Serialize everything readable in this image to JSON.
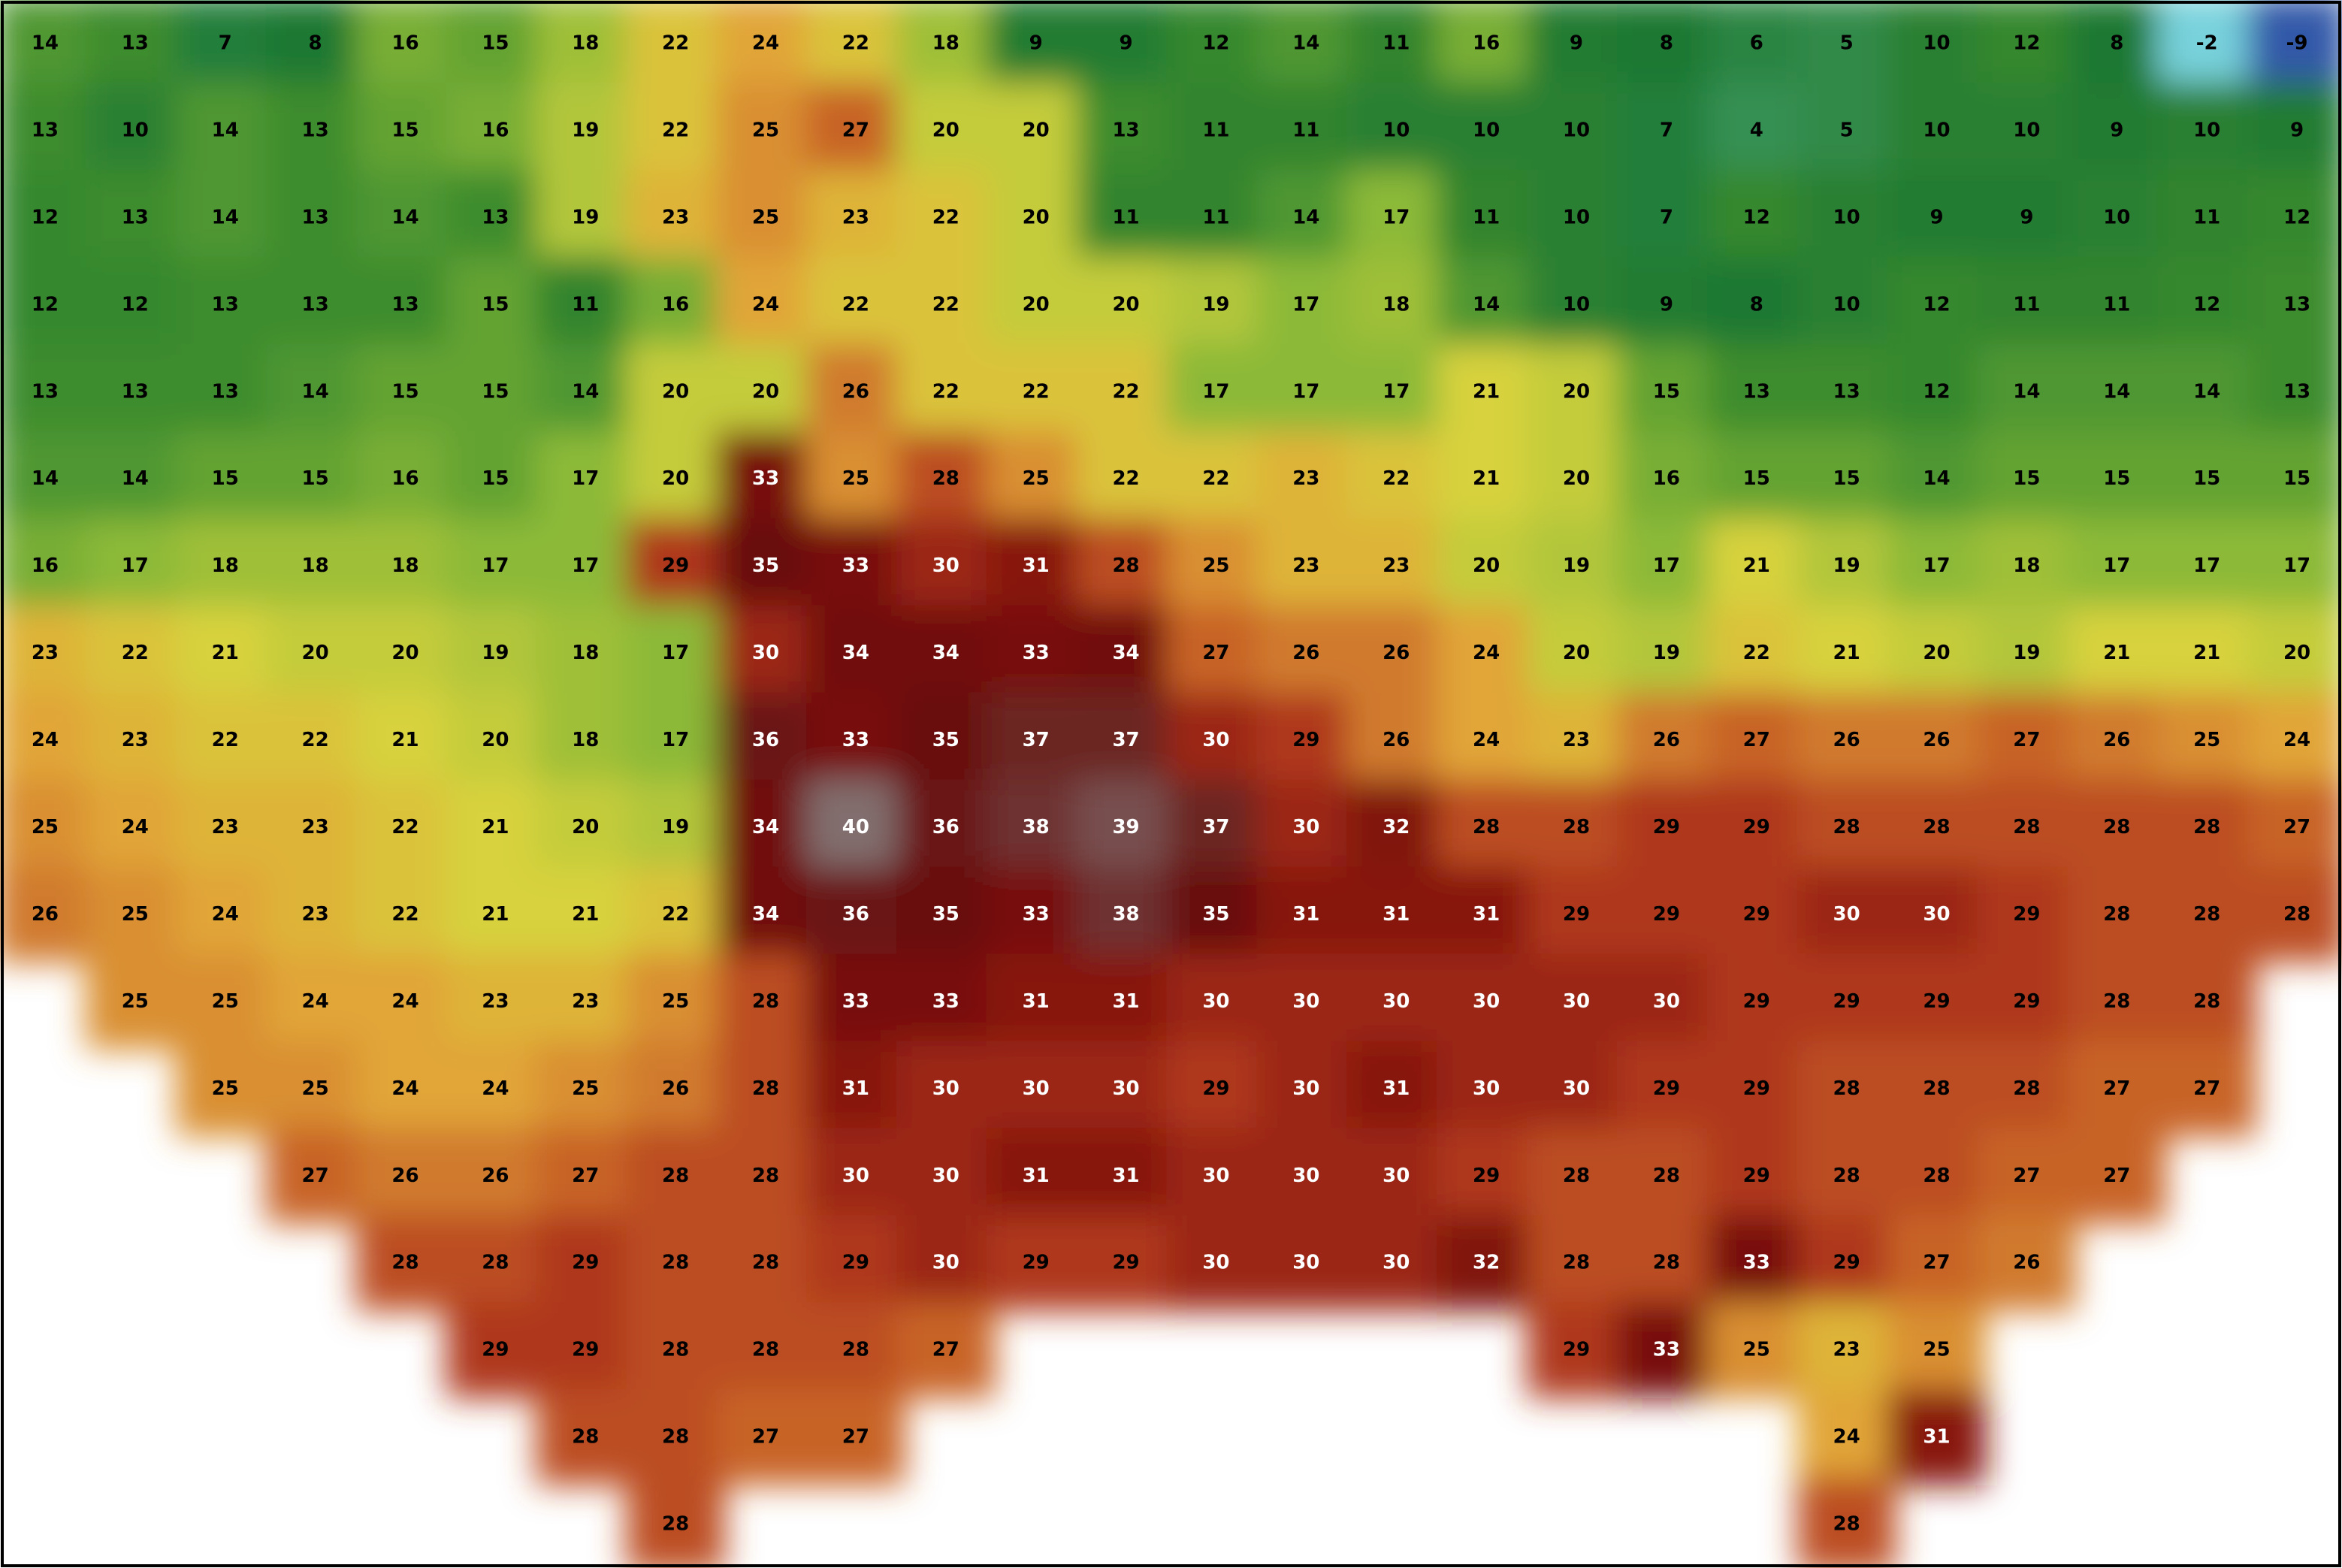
{
  "map": {
    "grid": [
      [
        14,
        13,
        7,
        8,
        16,
        15,
        18,
        22,
        24,
        22,
        18,
        9,
        9,
        12,
        14,
        11,
        16,
        9,
        8,
        6,
        5,
        10,
        12,
        8,
        -2,
        -9
      ],
      [
        13,
        10,
        14,
        13,
        15,
        16,
        19,
        22,
        25,
        27,
        20,
        20,
        13,
        11,
        11,
        10,
        10,
        10,
        7,
        4,
        5,
        10,
        10,
        9,
        10,
        9
      ],
      [
        12,
        13,
        14,
        13,
        14,
        13,
        19,
        23,
        25,
        23,
        22,
        20,
        11,
        11,
        14,
        17,
        11,
        10,
        7,
        12,
        10,
        9,
        9,
        10,
        11,
        12
      ],
      [
        12,
        12,
        13,
        13,
        13,
        15,
        11,
        16,
        24,
        22,
        22,
        20,
        20,
        19,
        17,
        18,
        14,
        10,
        9,
        8,
        10,
        12,
        11,
        11,
        12,
        13
      ],
      [
        13,
        13,
        13,
        14,
        15,
        15,
        14,
        20,
        20,
        26,
        22,
        22,
        22,
        17,
        17,
        17,
        21,
        20,
        15,
        13,
        13,
        12,
        14,
        14,
        14,
        13
      ],
      [
        14,
        14,
        15,
        15,
        16,
        15,
        17,
        20,
        33,
        25,
        28,
        25,
        22,
        22,
        23,
        22,
        21,
        20,
        16,
        15,
        15,
        14,
        15,
        15,
        15,
        15
      ],
      [
        16,
        17,
        18,
        18,
        18,
        17,
        17,
        29,
        35,
        33,
        30,
        31,
        28,
        25,
        23,
        23,
        20,
        19,
        17,
        21,
        19,
        17,
        18,
        17,
        17,
        17
      ],
      [
        23,
        22,
        21,
        20,
        20,
        19,
        18,
        17,
        30,
        34,
        34,
        33,
        34,
        27,
        26,
        26,
        24,
        20,
        19,
        22,
        21,
        20,
        19,
        21,
        21,
        20
      ],
      [
        24,
        23,
        22,
        22,
        21,
        20,
        18,
        17,
        36,
        33,
        35,
        37,
        37,
        30,
        29,
        26,
        24,
        23,
        26,
        27,
        26,
        26,
        27,
        26,
        25,
        24
      ],
      [
        25,
        24,
        23,
        23,
        22,
        21,
        20,
        19,
        34,
        40,
        36,
        38,
        39,
        37,
        30,
        32,
        28,
        28,
        29,
        29,
        28,
        28,
        28,
        28,
        28,
        27
      ],
      [
        26,
        25,
        24,
        23,
        22,
        21,
        21,
        22,
        34,
        36,
        35,
        33,
        38,
        35,
        31,
        31,
        31,
        29,
        29,
        29,
        30,
        30,
        29,
        28,
        28,
        28
      ],
      [
        null,
        25,
        25,
        24,
        24,
        23,
        23,
        25,
        28,
        33,
        33,
        31,
        31,
        30,
        30,
        30,
        30,
        30,
        30,
        29,
        29,
        29,
        29,
        28,
        28,
        null
      ],
      [
        null,
        null,
        25,
        25,
        24,
        24,
        25,
        26,
        28,
        31,
        30,
        30,
        30,
        29,
        30,
        31,
        30,
        30,
        29,
        29,
        28,
        28,
        28,
        27,
        27,
        null
      ],
      [
        null,
        null,
        null,
        27,
        26,
        26,
        27,
        28,
        28,
        30,
        30,
        31,
        31,
        30,
        30,
        30,
        29,
        28,
        28,
        29,
        28,
        28,
        27,
        27,
        null,
        null
      ],
      [
        null,
        null,
        null,
        null,
        28,
        28,
        29,
        28,
        28,
        29,
        30,
        29,
        29,
        30,
        30,
        30,
        32,
        28,
        28,
        33,
        29,
        27,
        26,
        null,
        null,
        null
      ],
      [
        null,
        null,
        null,
        null,
        null,
        29,
        29,
        28,
        28,
        28,
        27,
        null,
        null,
        null,
        null,
        null,
        null,
        29,
        33,
        25,
        23,
        25,
        null,
        null,
        null,
        null
      ],
      [
        null,
        null,
        null,
        null,
        null,
        null,
        28,
        28,
        27,
        27,
        null,
        null,
        null,
        null,
        null,
        null,
        null,
        null,
        null,
        null,
        24,
        31,
        null,
        null,
        null,
        null
      ],
      [
        null,
        null,
        null,
        null,
        null,
        null,
        null,
        28,
        null,
        null,
        null,
        null,
        null,
        null,
        null,
        null,
        null,
        null,
        null,
        null,
        28,
        null,
        null,
        null,
        null,
        null
      ]
    ]
  }
}
